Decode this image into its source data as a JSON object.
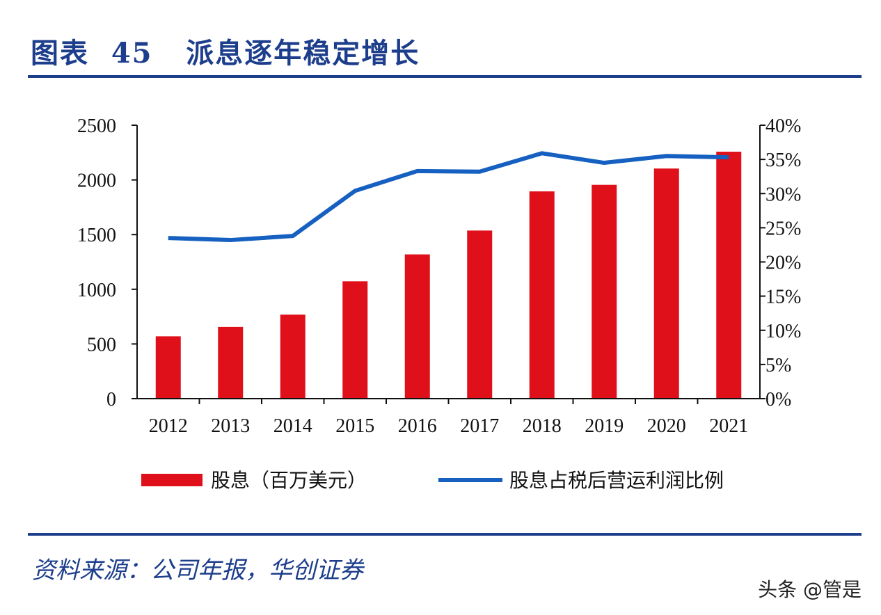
{
  "header": {
    "title": "图表  45   派息逐年稳定增长"
  },
  "footer": {
    "source": "资料来源：公司年报，华创证券",
    "watermark": "头条 @管是"
  },
  "chart_data": {
    "type": "bar+line",
    "categories": [
      "2012",
      "2013",
      "2014",
      "2015",
      "2016",
      "2017",
      "2018",
      "2019",
      "2020",
      "2021"
    ],
    "series": [
      {
        "name": "股息（百万美元）",
        "type": "bar",
        "axis": "left",
        "color": "#e0101a",
        "values": [
          570,
          656,
          768,
          1073,
          1319,
          1537,
          1895,
          1955,
          2104,
          2258
        ]
      },
      {
        "name": "股息占税后营运利润比例",
        "type": "line",
        "axis": "right",
        "color": "#1560c0",
        "values": [
          23.5,
          23.2,
          23.8,
          30.4,
          33.3,
          33.2,
          35.9,
          34.5,
          35.5,
          35.3
        ]
      }
    ],
    "left_axis": {
      "ylim": [
        0,
        2500
      ],
      "ticks": [
        "0",
        "500",
        "1000",
        "1500",
        "2000",
        "2500"
      ]
    },
    "right_axis": {
      "ylim": [
        0,
        40
      ],
      "ticks": [
        "0%",
        "5%",
        "10%",
        "15%",
        "20%",
        "25%",
        "30%",
        "35%",
        "40%"
      ]
    },
    "grid": false,
    "legend_placement": "bottom"
  }
}
